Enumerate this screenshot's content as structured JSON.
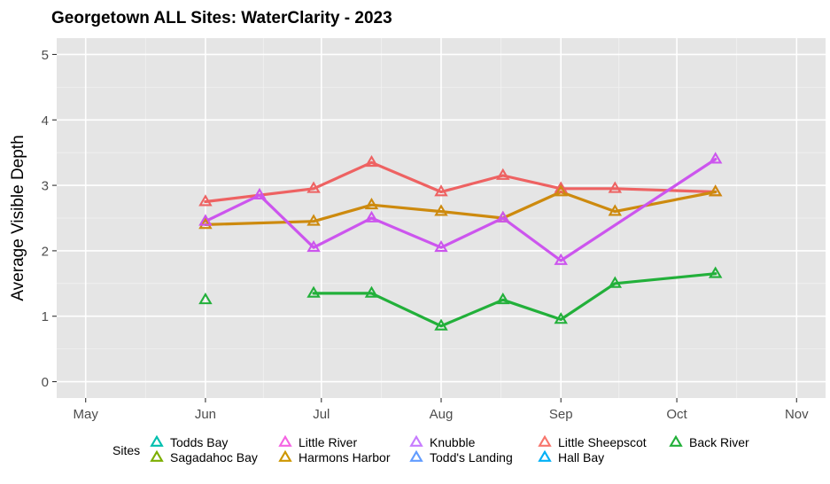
{
  "chart_data": {
    "type": "line",
    "title": "Georgetown ALL Sites: WaterClarity - 2023",
    "xlabel": "",
    "ylabel": "Average Visible Depth",
    "x_ticks": [
      "May",
      "Jun",
      "Jul",
      "Aug",
      "Sep",
      "Oct",
      "Nov"
    ],
    "x_tick_days": [
      0,
      31,
      61,
      92,
      123,
      153,
      184
    ],
    "x_range_days": [
      -7.5,
      191.5
    ],
    "ylim": [
      -0.25,
      5.25
    ],
    "y_ticks": [
      0,
      1,
      2,
      3,
      4,
      5
    ],
    "grid": true,
    "legend_title": "Sites",
    "legend": [
      {
        "name": "Todds Bay",
        "color": "#00BFAE"
      },
      {
        "name": "Sagadahoc Bay",
        "color": "#7CAE00"
      },
      {
        "name": "Little River",
        "color": "#F564E3"
      },
      {
        "name": "Harmons Harbor",
        "color": "#CD9600"
      },
      {
        "name": "Knubble",
        "color": "#C77CFF"
      },
      {
        "name": "Todd's Landing",
        "color": "#619CFF"
      },
      {
        "name": "Little Sheepscot",
        "color": "#F8766D"
      },
      {
        "name": "Hall Bay",
        "color": "#00B0F6"
      },
      {
        "name": "Back River",
        "color": "#22B03A"
      }
    ],
    "series": [
      {
        "name": "Little Sheepscot",
        "color": "#EE6262",
        "points": [
          {
            "day": 31,
            "value": 2.75
          },
          {
            "day": 59,
            "value": 2.95
          },
          {
            "day": 74,
            "value": 3.35
          },
          {
            "day": 92,
            "value": 2.9
          },
          {
            "day": 108,
            "value": 3.15
          },
          {
            "day": 123,
            "value": 2.95
          },
          {
            "day": 137,
            "value": 2.95
          },
          {
            "day": 163,
            "value": 2.9
          }
        ]
      },
      {
        "name": "Harmons Harbor",
        "color": "#CD8A0E",
        "points": [
          {
            "day": 31,
            "value": 2.4
          },
          {
            "day": 59,
            "value": 2.45
          },
          {
            "day": 74,
            "value": 2.7
          },
          {
            "day": 92,
            "value": 2.6
          },
          {
            "day": 108,
            "value": 2.5
          },
          {
            "day": 123,
            "value": 2.9
          },
          {
            "day": 137,
            "value": 2.6
          },
          {
            "day": 163,
            "value": 2.9
          }
        ]
      },
      {
        "name": "Knubble",
        "color": "#CC55EE",
        "points": [
          {
            "day": 31,
            "value": 2.45
          },
          {
            "day": 45,
            "value": 2.85
          },
          {
            "day": 59,
            "value": 2.05
          },
          {
            "day": 74,
            "value": 2.5
          },
          {
            "day": 92,
            "value": 2.05
          },
          {
            "day": 108,
            "value": 2.5
          },
          {
            "day": 123,
            "value": 1.85
          },
          {
            "day": 163,
            "value": 3.4
          }
        ]
      },
      {
        "name": "Back River",
        "color": "#22B03A",
        "points": [
          {
            "day": 31,
            "value": 1.25,
            "isolated": true
          },
          {
            "day": 59,
            "value": 1.35
          },
          {
            "day": 74,
            "value": 1.35
          },
          {
            "day": 92,
            "value": 0.85
          },
          {
            "day": 108,
            "value": 1.25
          },
          {
            "day": 123,
            "value": 0.95
          },
          {
            "day": 137,
            "value": 1.5
          },
          {
            "day": 163,
            "value": 1.65
          }
        ]
      }
    ]
  }
}
